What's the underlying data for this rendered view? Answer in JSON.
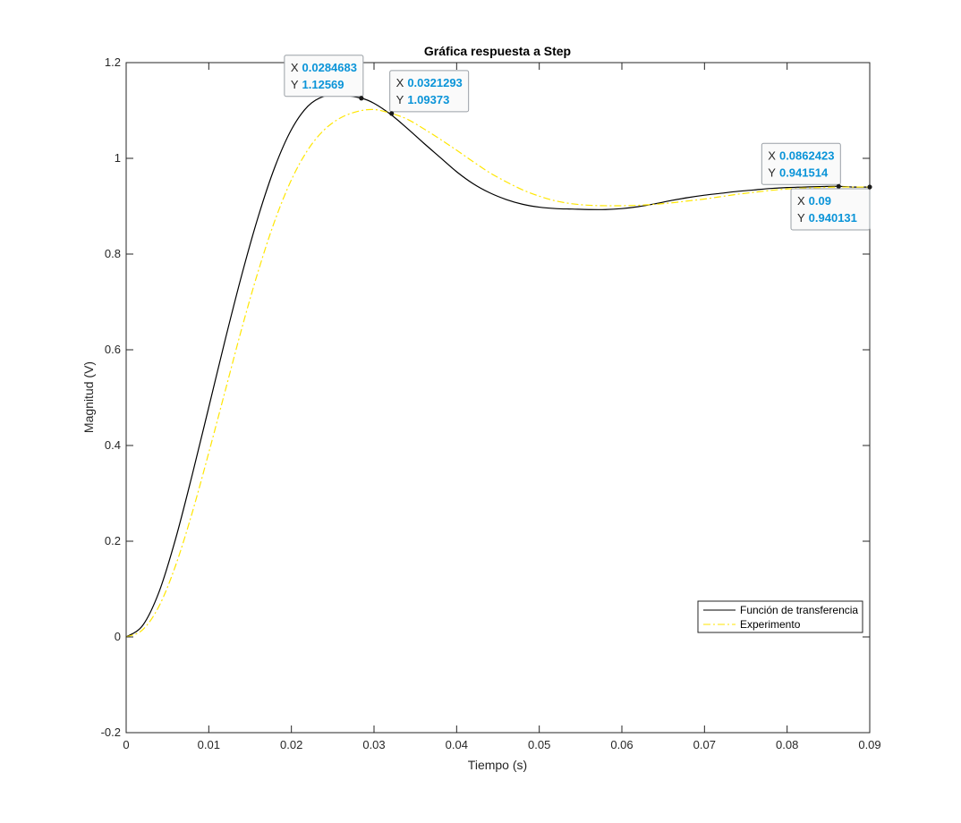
{
  "chart_data": {
    "type": "line",
    "title": "Gráfica respuesta a Step",
    "xlabel": "Tiempo (s)",
    "ylabel": "Magnitud (V)",
    "xlim": [
      0,
      0.09
    ],
    "ylim": [
      -0.2,
      1.2
    ],
    "x_ticks": [
      "0",
      "0.01",
      "0.02",
      "0.03",
      "0.04",
      "0.05",
      "0.06",
      "0.07",
      "0.08",
      "0.09"
    ],
    "y_ticks": [
      "-0.2",
      "0",
      "0.2",
      "0.4",
      "0.6",
      "0.8",
      "1",
      "1.2"
    ],
    "grid": false,
    "legend_position": "bottom-right",
    "series": [
      {
        "name": "Función de transferencia",
        "color": "#000000",
        "style": "solid",
        "x": [
          0,
          0.002,
          0.004,
          0.006,
          0.008,
          0.01,
          0.012,
          0.014,
          0.016,
          0.018,
          0.02,
          0.022,
          0.024,
          0.026,
          0.0284683,
          0.03,
          0.032,
          0.034,
          0.036,
          0.038,
          0.04,
          0.042,
          0.044,
          0.046,
          0.048,
          0.05,
          0.052,
          0.054,
          0.056,
          0.058,
          0.06,
          0.062,
          0.064,
          0.066,
          0.068,
          0.07,
          0.072,
          0.074,
          0.076,
          0.078,
          0.08,
          0.082,
          0.084,
          0.0862423,
          0.088,
          0.09
        ],
        "y": [
          0,
          0.024,
          0.095,
          0.206,
          0.339,
          0.48,
          0.622,
          0.757,
          0.879,
          0.982,
          1.06,
          1.109,
          1.13,
          1.132,
          1.12569,
          1.115,
          1.092,
          1.063,
          1.032,
          1.002,
          0.972,
          0.947,
          0.928,
          0.914,
          0.904,
          0.898,
          0.895,
          0.894,
          0.893,
          0.893,
          0.895,
          0.899,
          0.905,
          0.912,
          0.918,
          0.923,
          0.927,
          0.931,
          0.934,
          0.937,
          0.939,
          0.94,
          0.941,
          0.941514,
          0.94,
          0.94
        ]
      },
      {
        "name": "Experimento",
        "color": "#ffe600",
        "style": "dashdot",
        "x": [
          0,
          0.002,
          0.004,
          0.006,
          0.008,
          0.01,
          0.012,
          0.014,
          0.016,
          0.018,
          0.02,
          0.022,
          0.024,
          0.026,
          0.028,
          0.03,
          0.0321293,
          0.034,
          0.036,
          0.038,
          0.04,
          0.042,
          0.044,
          0.046,
          0.048,
          0.05,
          0.052,
          0.054,
          0.056,
          0.058,
          0.06,
          0.062,
          0.064,
          0.066,
          0.068,
          0.07,
          0.072,
          0.074,
          0.076,
          0.078,
          0.08,
          0.082,
          0.084,
          0.086,
          0.088,
          0.09
        ],
        "y": [
          0,
          0.015,
          0.065,
          0.15,
          0.26,
          0.385,
          0.515,
          0.645,
          0.765,
          0.87,
          0.955,
          1.018,
          1.06,
          1.085,
          1.098,
          1.102,
          1.09373,
          1.082,
          1.062,
          1.04,
          1.017,
          0.993,
          0.97,
          0.951,
          0.934,
          0.921,
          0.911,
          0.905,
          0.902,
          0.901,
          0.901,
          0.902,
          0.904,
          0.907,
          0.911,
          0.915,
          0.92,
          0.925,
          0.929,
          0.933,
          0.936,
          0.938,
          0.939,
          0.94,
          0.94,
          0.940131
        ]
      }
    ],
    "datatips": [
      {
        "x_text": "0.0284683",
        "y_text": "1.12569",
        "x": 0.0284683,
        "y": 1.12569
      },
      {
        "x_text": "0.0321293",
        "y_text": "1.09373",
        "x": 0.0321293,
        "y": 1.09373
      },
      {
        "x_text": "0.0862423",
        "y_text": "0.941514",
        "x": 0.0862423,
        "y": 0.941514
      },
      {
        "x_text": "0.09",
        "y_text": "0.940131",
        "x": 0.09,
        "y": 0.940131
      }
    ],
    "datatip_key_x": "X",
    "datatip_key_y": "Y"
  }
}
